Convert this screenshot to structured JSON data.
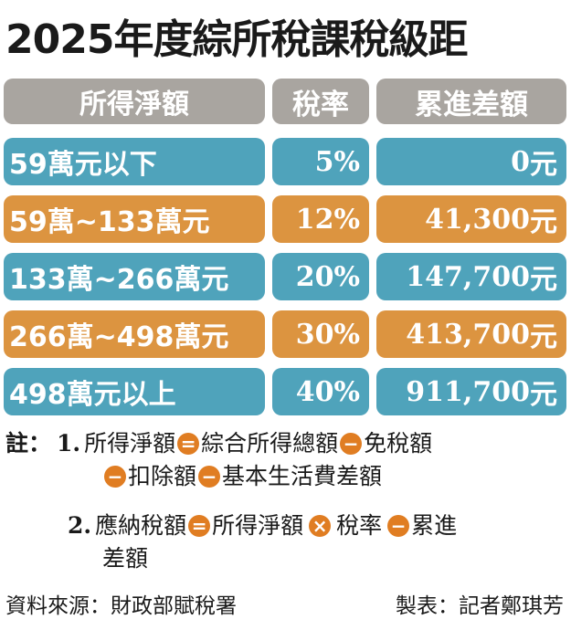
{
  "title": "2025年度綜所稅課稅級距",
  "table": {
    "headers": [
      "所得淨額",
      "稅率",
      "累進差額"
    ],
    "rows": [
      {
        "range": "59萬元以下",
        "rate": "5%",
        "diff_num": "0",
        "diff_unit": "元",
        "color": "#4fa3bb"
      },
      {
        "range": "59萬~133萬元",
        "rate": "12%",
        "diff_num": "41,300",
        "diff_unit": "元",
        "color": "#dc9440"
      },
      {
        "range": "133萬~266萬元",
        "rate": "20%",
        "diff_num": "147,700",
        "diff_unit": "元",
        "color": "#4fa3bb"
      },
      {
        "range": "266萬~498萬元",
        "rate": "30%",
        "diff_num": "413,700",
        "diff_unit": "元",
        "color": "#dc9440"
      },
      {
        "range": "498萬元以上",
        "rate": "40%",
        "diff_num": "911,700",
        "diff_unit": "元",
        "color": "#4fa3bb"
      }
    ]
  },
  "notes": {
    "label": "註：",
    "n1_num": "1.",
    "n1_a": "所得淨額",
    "n1_b": "綜合所得總額",
    "n1_c": "免稅額",
    "n1_d": "扣除額",
    "n1_e": "基本生活費差額",
    "n2_num": "2.",
    "n2_a": "應納稅額",
    "n2_b": "所得淨額",
    "n2_c": "稅率",
    "n2_d": "累進",
    "n2_e": "差額",
    "op_equals": "=",
    "op_minus": "−",
    "op_times": "×",
    "op_color": "#e07d22"
  },
  "footer": {
    "source": "資料來源：財政部賦稅署",
    "credit": "製表：記者鄭琪芳"
  }
}
